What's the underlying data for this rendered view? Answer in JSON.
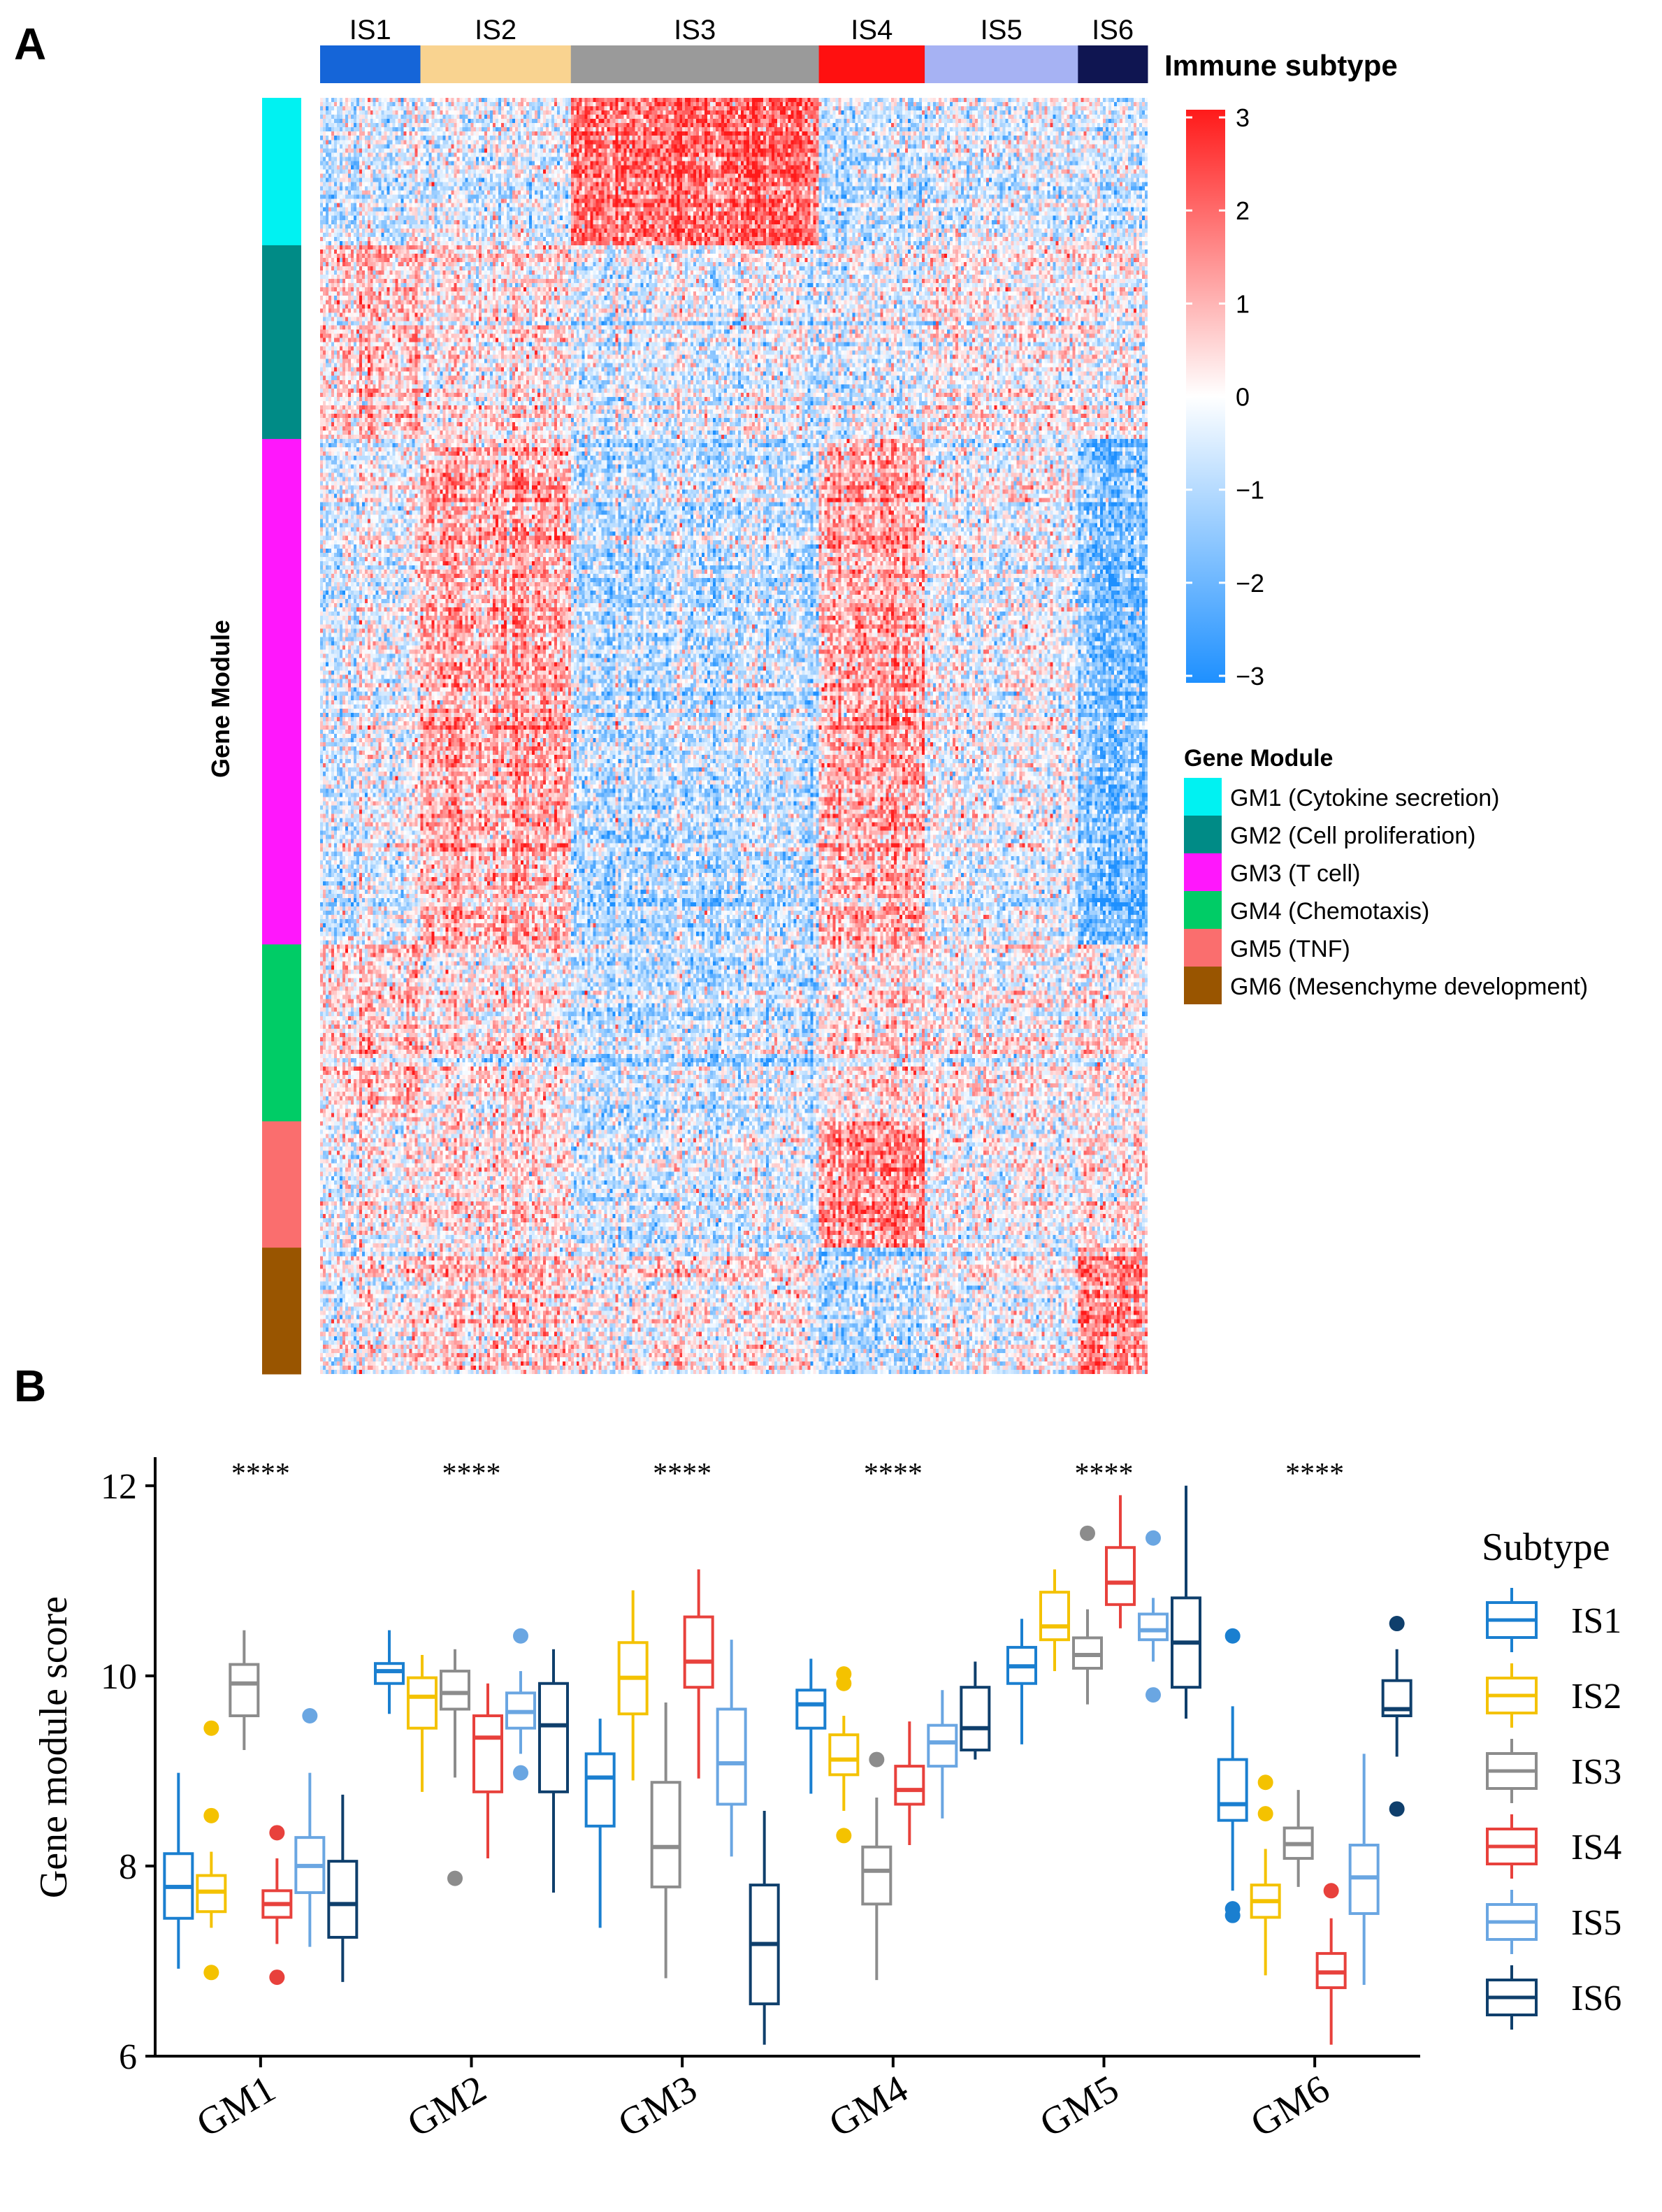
{
  "panel_a": {
    "label": "A",
    "subtype_bar_title": "Immune subtype",
    "row_axis_title": "Gene Module",
    "subtypes": [
      {
        "label": "IS1",
        "color": "#1565d8",
        "samples": 36
      },
      {
        "label": "IS2",
        "color": "#f9d390",
        "samples": 54
      },
      {
        "label": "IS3",
        "color": "#9a9a9a",
        "samples": 89
      },
      {
        "label": "IS4",
        "color": "#ff1010",
        "samples": 38
      },
      {
        "label": "IS5",
        "color": "#a6b2f3",
        "samples": 55
      },
      {
        "label": "IS6",
        "color": "#0f1551",
        "samples": 25
      }
    ],
    "modules": [
      {
        "key": "GM1",
        "label": "GM1 (Cytokine secretion)",
        "color": "#00f2f2",
        "genes": 35
      },
      {
        "key": "GM2",
        "label": "GM2 (Cell proliferation)",
        "color": "#008b86",
        "genes": 46
      },
      {
        "key": "GM3",
        "label": "GM3 (T cell)",
        "color": "#ff17fc",
        "genes": 120
      },
      {
        "key": "GM4",
        "label": "GM4 (Chemotaxis)",
        "color": "#00cc66",
        "genes": 42
      },
      {
        "key": "GM5",
        "label": "GM5 (TNF)",
        "color": "#fa6e6e",
        "genes": 30
      },
      {
        "key": "GM6",
        "label": "GM6 (Mesenchyme development)",
        "color": "#995500",
        "genes": 30
      }
    ],
    "pattern": [
      [
        -0.4,
        -0.3,
        2.0,
        -0.6,
        -0.3,
        -0.5
      ],
      [
        0.7,
        0.2,
        -0.3,
        -0.3,
        0.1,
        0.0
      ],
      [
        -0.3,
        1.0,
        -0.8,
        1.1,
        -0.2,
        -1.7
      ],
      [
        0.6,
        0.2,
        -0.7,
        0.4,
        0.0,
        0.0
      ],
      [
        0.0,
        0.4,
        -0.4,
        1.6,
        0.0,
        0.3
      ],
      [
        0.0,
        0.5,
        0.1,
        -0.9,
        -0.2,
        1.5
      ]
    ],
    "color_scale": {
      "ticks": [
        3,
        2,
        1,
        0,
        -1,
        -2,
        -3
      ],
      "low": "#1e90ff",
      "mid": "#ffffff",
      "high": "#ff1a1a"
    },
    "module_legend_title": "Gene Module"
  },
  "panel_b": {
    "label": "B",
    "ylabel": "Gene module score",
    "legend_title": "Subtype",
    "significance": "****"
  },
  "chart_data": {
    "type": "box",
    "title": "",
    "xlabel": "",
    "ylabel": "Gene module score",
    "ylim": [
      6,
      12.3
    ],
    "yticks": [
      6,
      8,
      10,
      12
    ],
    "categories": [
      "GM1",
      "GM2",
      "GM3",
      "GM4",
      "GM5",
      "GM6"
    ],
    "significance_labels": [
      "****",
      "****",
      "****",
      "****",
      "****",
      "****"
    ],
    "series": [
      {
        "name": "IS1",
        "color": "#1a7fd0",
        "boxes": [
          {
            "q1": 7.45,
            "median": 7.78,
            "q3": 8.13,
            "whisker_low": 6.92,
            "whisker_high": 8.98,
            "outliers": []
          },
          {
            "q1": 9.92,
            "median": 10.05,
            "q3": 10.13,
            "whisker_low": 9.6,
            "whisker_high": 10.48,
            "outliers": []
          },
          {
            "q1": 8.42,
            "median": 8.93,
            "q3": 9.18,
            "whisker_low": 7.35,
            "whisker_high": 9.55,
            "outliers": []
          },
          {
            "q1": 9.45,
            "median": 9.7,
            "q3": 9.85,
            "whisker_low": 8.76,
            "whisker_high": 10.18,
            "outliers": []
          },
          {
            "q1": 9.92,
            "median": 10.1,
            "q3": 10.3,
            "whisker_low": 9.28,
            "whisker_high": 10.6,
            "outliers": []
          },
          {
            "q1": 8.48,
            "median": 8.65,
            "q3": 9.12,
            "whisker_low": 7.74,
            "whisker_high": 9.68,
            "outliers": [
              10.42,
              7.55,
              7.48
            ]
          }
        ]
      },
      {
        "name": "IS2",
        "color": "#f4c200",
        "boxes": [
          {
            "q1": 7.52,
            "median": 7.73,
            "q3": 7.9,
            "whisker_low": 7.35,
            "whisker_high": 8.15,
            "outliers": [
              9.45,
              8.53,
              6.88
            ]
          },
          {
            "q1": 9.45,
            "median": 9.78,
            "q3": 9.98,
            "whisker_low": 8.78,
            "whisker_high": 10.22,
            "outliers": []
          },
          {
            "q1": 9.6,
            "median": 9.98,
            "q3": 10.35,
            "whisker_low": 8.9,
            "whisker_high": 10.9,
            "outliers": []
          },
          {
            "q1": 8.96,
            "median": 9.12,
            "q3": 9.38,
            "whisker_low": 8.58,
            "whisker_high": 9.58,
            "outliers": [
              10.02,
              9.92,
              8.32
            ]
          },
          {
            "q1": 10.38,
            "median": 10.52,
            "q3": 10.88,
            "whisker_low": 10.05,
            "whisker_high": 11.12,
            "outliers": []
          },
          {
            "q1": 7.46,
            "median": 7.63,
            "q3": 7.8,
            "whisker_low": 6.85,
            "whisker_high": 8.18,
            "outliers": [
              8.88,
              8.55
            ]
          }
        ]
      },
      {
        "name": "IS3",
        "color": "#8c8c8c",
        "boxes": [
          {
            "q1": 9.58,
            "median": 9.92,
            "q3": 10.12,
            "whisker_low": 9.22,
            "whisker_high": 10.48,
            "outliers": []
          },
          {
            "q1": 9.65,
            "median": 9.82,
            "q3": 10.05,
            "whisker_low": 8.93,
            "whisker_high": 10.28,
            "outliers": [
              7.87
            ]
          },
          {
            "q1": 7.78,
            "median": 8.2,
            "q3": 8.88,
            "whisker_low": 6.82,
            "whisker_high": 9.72,
            "outliers": []
          },
          {
            "q1": 7.6,
            "median": 7.95,
            "q3": 8.2,
            "whisker_low": 6.8,
            "whisker_high": 8.72,
            "outliers": [
              9.12
            ]
          },
          {
            "q1": 10.08,
            "median": 10.22,
            "q3": 10.4,
            "whisker_low": 9.7,
            "whisker_high": 10.7,
            "outliers": [
              11.5
            ]
          },
          {
            "q1": 8.08,
            "median": 8.23,
            "q3": 8.4,
            "whisker_low": 7.78,
            "whisker_high": 8.8,
            "outliers": []
          }
        ]
      },
      {
        "name": "IS4",
        "color": "#e8413c",
        "boxes": [
          {
            "q1": 7.46,
            "median": 7.6,
            "q3": 7.74,
            "whisker_low": 7.18,
            "whisker_high": 8.08,
            "outliers": [
              8.35,
              6.83
            ]
          },
          {
            "q1": 8.78,
            "median": 9.35,
            "q3": 9.58,
            "whisker_low": 8.08,
            "whisker_high": 9.92,
            "outliers": []
          },
          {
            "q1": 9.88,
            "median": 10.15,
            "q3": 10.62,
            "whisker_low": 8.92,
            "whisker_high": 11.12,
            "outliers": []
          },
          {
            "q1": 8.65,
            "median": 8.8,
            "q3": 9.05,
            "whisker_low": 8.22,
            "whisker_high": 9.52,
            "outliers": []
          },
          {
            "q1": 10.75,
            "median": 10.98,
            "q3": 11.35,
            "whisker_low": 10.5,
            "whisker_high": 11.9,
            "outliers": []
          },
          {
            "q1": 6.72,
            "median": 6.88,
            "q3": 7.08,
            "whisker_low": 6.12,
            "whisker_high": 7.45,
            "outliers": [
              7.74
            ]
          }
        ]
      },
      {
        "name": "IS5",
        "color": "#6aa6e2",
        "boxes": [
          {
            "q1": 7.72,
            "median": 8.0,
            "q3": 8.3,
            "whisker_low": 7.15,
            "whisker_high": 8.98,
            "outliers": [
              9.58
            ]
          },
          {
            "q1": 9.45,
            "median": 9.62,
            "q3": 9.82,
            "whisker_low": 9.18,
            "whisker_high": 10.05,
            "outliers": [
              10.42,
              8.98
            ]
          },
          {
            "q1": 8.65,
            "median": 9.08,
            "q3": 9.65,
            "whisker_low": 8.1,
            "whisker_high": 10.38,
            "outliers": []
          },
          {
            "q1": 9.05,
            "median": 9.3,
            "q3": 9.48,
            "whisker_low": 8.5,
            "whisker_high": 9.85,
            "outliers": []
          },
          {
            "q1": 10.38,
            "median": 10.48,
            "q3": 10.65,
            "whisker_low": 10.15,
            "whisker_high": 10.82,
            "outliers": [
              11.45,
              9.8
            ]
          },
          {
            "q1": 7.5,
            "median": 7.88,
            "q3": 8.22,
            "whisker_low": 6.75,
            "whisker_high": 9.18,
            "outliers": []
          }
        ]
      },
      {
        "name": "IS6",
        "color": "#0f3f6c",
        "boxes": [
          {
            "q1": 7.25,
            "median": 7.6,
            "q3": 8.05,
            "whisker_low": 6.78,
            "whisker_high": 8.75,
            "outliers": []
          },
          {
            "q1": 8.78,
            "median": 9.48,
            "q3": 9.92,
            "whisker_low": 7.72,
            "whisker_high": 10.28,
            "outliers": []
          },
          {
            "q1": 6.55,
            "median": 7.18,
            "q3": 7.8,
            "whisker_low": 6.12,
            "whisker_high": 8.58,
            "outliers": []
          },
          {
            "q1": 9.22,
            "median": 9.45,
            "q3": 9.88,
            "whisker_low": 9.12,
            "whisker_high": 10.15,
            "outliers": []
          },
          {
            "q1": 9.88,
            "median": 10.35,
            "q3": 10.82,
            "whisker_low": 9.55,
            "whisker_high": 12.0,
            "outliers": []
          },
          {
            "q1": 9.58,
            "median": 9.65,
            "q3": 9.95,
            "whisker_low": 9.15,
            "whisker_high": 10.28,
            "outliers": [
              10.55,
              8.6
            ]
          }
        ]
      }
    ]
  }
}
